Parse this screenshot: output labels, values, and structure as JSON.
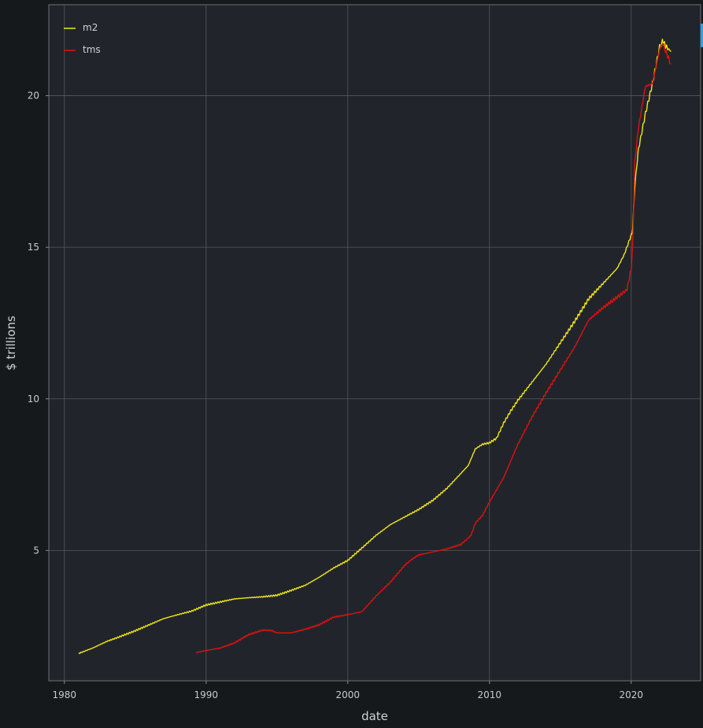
{
  "chart_data": {
    "type": "line",
    "xlabel": "date",
    "ylabel": "$ trillions",
    "xlim": [
      1978.9,
      2024.9
    ],
    "ylim": [
      0.7,
      23.0
    ],
    "x_ticks": [
      1980,
      1990,
      2000,
      2010,
      2020
    ],
    "y_ticks": [
      5,
      10,
      15,
      20
    ],
    "grid": true,
    "legend_position": "top-left",
    "series": [
      {
        "name": "m2",
        "color": "#f2e614",
        "points": [
          [
            1981.0,
            1.6
          ],
          [
            1982.0,
            1.78
          ],
          [
            1983.0,
            2.0
          ],
          [
            1984.0,
            2.17
          ],
          [
            1985.0,
            2.35
          ],
          [
            1986.0,
            2.55
          ],
          [
            1987.0,
            2.75
          ],
          [
            1988.0,
            2.88
          ],
          [
            1989.0,
            3.0
          ],
          [
            1990.0,
            3.2
          ],
          [
            1991.0,
            3.3
          ],
          [
            1992.0,
            3.4
          ],
          [
            1993.0,
            3.44
          ],
          [
            1994.0,
            3.47
          ],
          [
            1995.0,
            3.52
          ],
          [
            1996.0,
            3.68
          ],
          [
            1997.0,
            3.85
          ],
          [
            1998.0,
            4.12
          ],
          [
            1999.0,
            4.42
          ],
          [
            2000.0,
            4.67
          ],
          [
            2001.0,
            5.08
          ],
          [
            2002.0,
            5.5
          ],
          [
            2003.0,
            5.85
          ],
          [
            2004.0,
            6.1
          ],
          [
            2005.0,
            6.35
          ],
          [
            2006.0,
            6.65
          ],
          [
            2007.0,
            7.05
          ],
          [
            2008.0,
            7.55
          ],
          [
            2008.5,
            7.8
          ],
          [
            2009.0,
            8.35
          ],
          [
            2009.5,
            8.5
          ],
          [
            2010.0,
            8.55
          ],
          [
            2010.5,
            8.7
          ],
          [
            2011.0,
            9.2
          ],
          [
            2011.5,
            9.6
          ],
          [
            2012.0,
            9.95
          ],
          [
            2013.0,
            10.55
          ],
          [
            2014.0,
            11.15
          ],
          [
            2015.0,
            11.85
          ],
          [
            2016.0,
            12.55
          ],
          [
            2017.0,
            13.3
          ],
          [
            2018.0,
            13.8
          ],
          [
            2019.0,
            14.3
          ],
          [
            2019.5,
            14.75
          ],
          [
            2020.0,
            15.4
          ],
          [
            2020.1,
            15.6
          ],
          [
            2020.25,
            17.0
          ],
          [
            2020.5,
            18.2
          ],
          [
            2021.0,
            19.4
          ],
          [
            2021.5,
            20.4
          ],
          [
            2022.0,
            21.6
          ],
          [
            2022.2,
            21.8
          ],
          [
            2022.5,
            21.6
          ],
          [
            2022.8,
            21.45
          ]
        ]
      },
      {
        "name": "tms",
        "color": "#e01010",
        "points": [
          [
            1989.3,
            1.63
          ],
          [
            1990.0,
            1.7
          ],
          [
            1991.0,
            1.78
          ],
          [
            1992.0,
            1.95
          ],
          [
            1993.0,
            2.22
          ],
          [
            1994.0,
            2.37
          ],
          [
            1994.6,
            2.36
          ],
          [
            1995.0,
            2.28
          ],
          [
            1996.0,
            2.28
          ],
          [
            1997.0,
            2.4
          ],
          [
            1998.0,
            2.55
          ],
          [
            1999.0,
            2.8
          ],
          [
            2000.0,
            2.88
          ],
          [
            2001.0,
            2.98
          ],
          [
            2002.0,
            3.5
          ],
          [
            2003.0,
            3.95
          ],
          [
            2004.0,
            4.5
          ],
          [
            2004.5,
            4.7
          ],
          [
            2005.0,
            4.85
          ],
          [
            2006.0,
            4.95
          ],
          [
            2007.0,
            5.05
          ],
          [
            2008.0,
            5.2
          ],
          [
            2008.7,
            5.5
          ],
          [
            2009.0,
            5.9
          ],
          [
            2009.5,
            6.15
          ],
          [
            2010.0,
            6.6
          ],
          [
            2011.0,
            7.4
          ],
          [
            2012.0,
            8.5
          ],
          [
            2013.0,
            9.4
          ],
          [
            2014.0,
            10.2
          ],
          [
            2015.0,
            10.95
          ],
          [
            2016.0,
            11.7
          ],
          [
            2017.0,
            12.6
          ],
          [
            2018.0,
            13.0
          ],
          [
            2019.0,
            13.35
          ],
          [
            2019.7,
            13.6
          ],
          [
            2020.0,
            14.3
          ],
          [
            2020.1,
            15.0
          ],
          [
            2020.25,
            17.8
          ],
          [
            2020.5,
            18.9
          ],
          [
            2021.0,
            20.3
          ],
          [
            2021.5,
            20.4
          ],
          [
            2022.0,
            21.5
          ],
          [
            2022.2,
            21.75
          ],
          [
            2022.4,
            21.5
          ],
          [
            2022.8,
            21.05
          ]
        ]
      }
    ]
  }
}
